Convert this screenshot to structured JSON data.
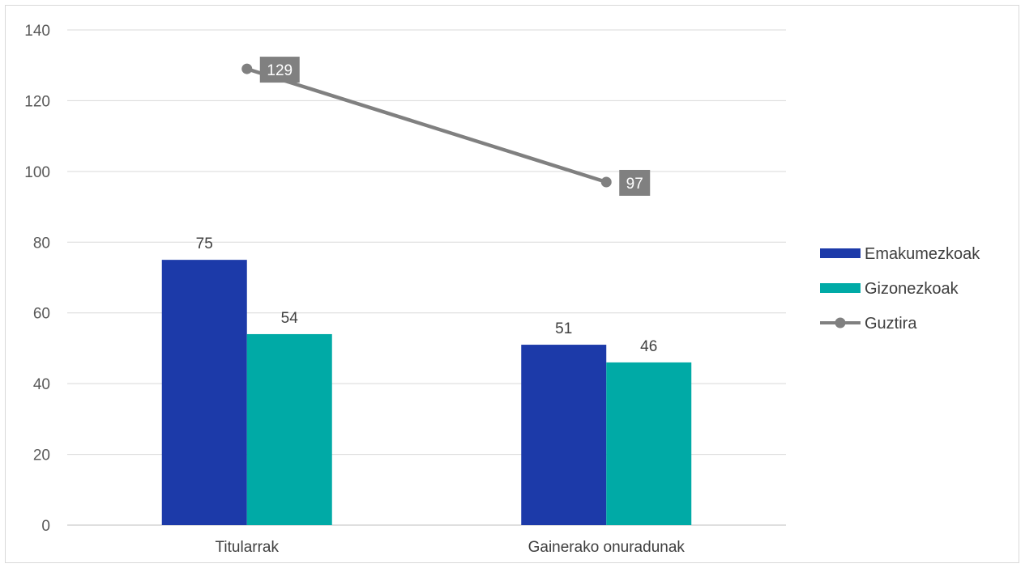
{
  "chart_data": {
    "type": "bar",
    "categories": [
      "Titularrak",
      "Gainerako onuradunak"
    ],
    "series": [
      {
        "name": "Emakumezkoak",
        "type": "bar",
        "values": [
          75,
          51
        ],
        "color": "#1c3aa9"
      },
      {
        "name": "Gizonezkoak",
        "type": "bar",
        "values": [
          54,
          46
        ],
        "color": "#00aaa6"
      },
      {
        "name": "Guztira",
        "type": "line",
        "values": [
          129,
          97
        ],
        "color": "#808080"
      }
    ],
    "ylim": [
      0,
      140
    ],
    "yticks": [
      0,
      20,
      40,
      60,
      80,
      100,
      120,
      140
    ],
    "grid": true,
    "legend_position": "right",
    "data_labels": true
  }
}
